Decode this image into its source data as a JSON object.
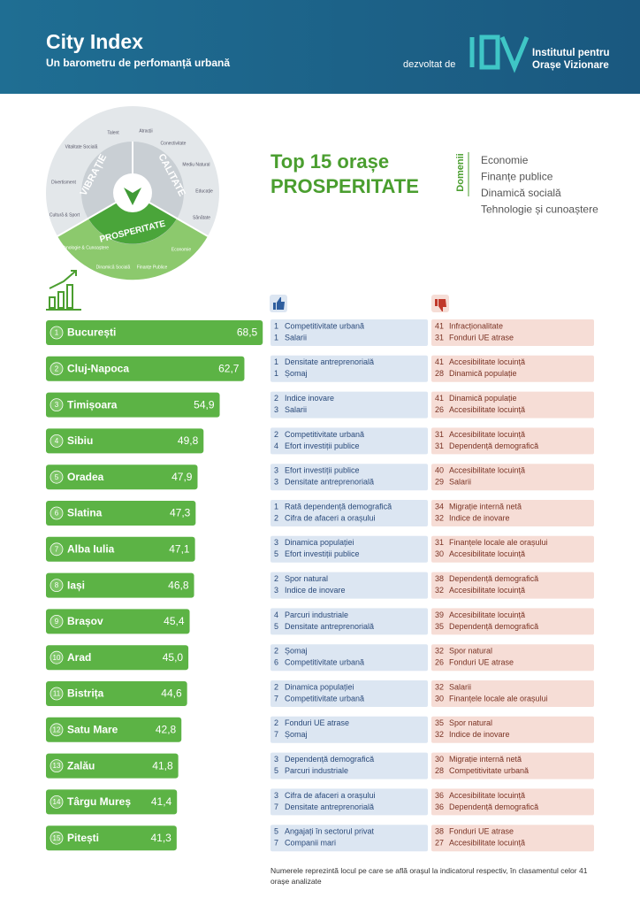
{
  "header": {
    "title": "City Index",
    "subtitle": "Un barometru de perfomanță urbană",
    "developed_by": "dezvoltat de",
    "institute": [
      "Institutul pentru",
      "Orașe Vizionare"
    ]
  },
  "wheel": {
    "dimensions": [
      "VIBRAȚIE",
      "CALITATE",
      "PROSPERITATE"
    ],
    "sectors": [
      "Talent",
      "Atracții",
      "Conectivitate",
      "Mediu Natural",
      "Educație",
      "Sănătate",
      "Economie",
      "Finanțe Publice",
      "Dinamică Socială",
      "Tehnologie & Cunoaștere",
      "Cultură & Sport",
      "Divertisment",
      "Vitalitate Socială"
    ]
  },
  "heading": {
    "line1": "Top 15 orașe",
    "line2": "PROSPERITATE",
    "domains_label": "Domenii",
    "domains": [
      "Economie",
      "Finanțe publice",
      "Dinamică socială",
      "Tehnologie și cunoaștere"
    ]
  },
  "chart_data": {
    "type": "bar",
    "orientation": "horizontal",
    "color": "#5cb345",
    "ranks": [
      1,
      2,
      3,
      4,
      5,
      6,
      7,
      8,
      9,
      10,
      11,
      12,
      13,
      14,
      15
    ],
    "categories": [
      "București",
      "Cluj-Napoca",
      "Timișoara",
      "Sibiu",
      "Oradea",
      "Slatina",
      "Alba Iulia",
      "Iași",
      "Brașov",
      "Arad",
      "Bistrița",
      "Satu Mare",
      "Zalău",
      "Târgu Mureș",
      "Pitești"
    ],
    "values": [
      68.5,
      62.7,
      54.9,
      49.8,
      47.9,
      47.3,
      47.1,
      46.8,
      45.4,
      45.0,
      44.6,
      42.8,
      41.8,
      41.4,
      41.3
    ],
    "value_labels": [
      "68,5",
      "62,7",
      "54,9",
      "49,8",
      "47,9",
      "47,3",
      "47,1",
      "46,8",
      "45,4",
      "45,0",
      "44,6",
      "42,8",
      "41,8",
      "41,4",
      "41,3"
    ]
  },
  "indicators": [
    {
      "strengths": [
        {
          "rank": 1,
          "label": "Competitivitate urbană"
        },
        {
          "rank": 1,
          "label": "Salarii"
        }
      ],
      "weaknesses": [
        {
          "rank": 41,
          "label": "Infracționalitate"
        },
        {
          "rank": 31,
          "label": "Fonduri UE atrase"
        }
      ]
    },
    {
      "strengths": [
        {
          "rank": 1,
          "label": "Densitate antreprenorială"
        },
        {
          "rank": 1,
          "label": "Șomaj"
        }
      ],
      "weaknesses": [
        {
          "rank": 41,
          "label": "Accesibilitate locuință"
        },
        {
          "rank": 28,
          "label": "Dinamică populație"
        }
      ]
    },
    {
      "strengths": [
        {
          "rank": 2,
          "label": "Indice inovare"
        },
        {
          "rank": 3,
          "label": "Salarii"
        }
      ],
      "weaknesses": [
        {
          "rank": 41,
          "label": "Dinamică populație"
        },
        {
          "rank": 26,
          "label": "Accesibilitate locuință"
        }
      ]
    },
    {
      "strengths": [
        {
          "rank": 2,
          "label": "Competitivitate urbană"
        },
        {
          "rank": 4,
          "label": "Efort investiții publice"
        }
      ],
      "weaknesses": [
        {
          "rank": 31,
          "label": "Accesibilitate locuință"
        },
        {
          "rank": 31,
          "label": "Dependență demografică"
        }
      ]
    },
    {
      "strengths": [
        {
          "rank": 3,
          "label": "Efort investiții publice"
        },
        {
          "rank": 3,
          "label": "Densitate antreprenorială"
        }
      ],
      "weaknesses": [
        {
          "rank": 40,
          "label": "Accesibilitate locuință"
        },
        {
          "rank": 29,
          "label": "Salarii"
        }
      ]
    },
    {
      "strengths": [
        {
          "rank": 1,
          "label": "Rată dependență demografică"
        },
        {
          "rank": 2,
          "label": "Cifra de afaceri a orașului"
        }
      ],
      "weaknesses": [
        {
          "rank": 34,
          "label": "Migrație internă netă"
        },
        {
          "rank": 32,
          "label": "Indice de inovare"
        }
      ]
    },
    {
      "strengths": [
        {
          "rank": 3,
          "label": "Dinamica populației"
        },
        {
          "rank": 5,
          "label": "Efort investiții publice"
        }
      ],
      "weaknesses": [
        {
          "rank": 31,
          "label": "Finanțele locale ale orașului"
        },
        {
          "rank": 30,
          "label": "Accesibilitate locuință"
        }
      ]
    },
    {
      "strengths": [
        {
          "rank": 2,
          "label": "Spor natural"
        },
        {
          "rank": 3,
          "label": "Indice de inovare"
        }
      ],
      "weaknesses": [
        {
          "rank": 38,
          "label": "Dependență demografică"
        },
        {
          "rank": 32,
          "label": "Accesibilitate locuință"
        }
      ]
    },
    {
      "strengths": [
        {
          "rank": 4,
          "label": "Parcuri industriale"
        },
        {
          "rank": 5,
          "label": "Densitate antreprenorială"
        }
      ],
      "weaknesses": [
        {
          "rank": 39,
          "label": "Accesibilitate locuință"
        },
        {
          "rank": 35,
          "label": "Dependență demografică"
        }
      ]
    },
    {
      "strengths": [
        {
          "rank": 2,
          "label": "Șomaj"
        },
        {
          "rank": 6,
          "label": "Competitivitate urbană"
        }
      ],
      "weaknesses": [
        {
          "rank": 32,
          "label": "Spor natural"
        },
        {
          "rank": 26,
          "label": "Fonduri UE atrase"
        }
      ]
    },
    {
      "strengths": [
        {
          "rank": 2,
          "label": "Dinamica populației"
        },
        {
          "rank": 7,
          "label": "Competitivitate urbană"
        }
      ],
      "weaknesses": [
        {
          "rank": 32,
          "label": "Salarii"
        },
        {
          "rank": 30,
          "label": "Finanțele locale ale orașului"
        }
      ]
    },
    {
      "strengths": [
        {
          "rank": 2,
          "label": "Fonduri UE atrase"
        },
        {
          "rank": 7,
          "label": "Șomaj"
        }
      ],
      "weaknesses": [
        {
          "rank": 35,
          "label": "Spor natural"
        },
        {
          "rank": 32,
          "label": "Indice de inovare"
        }
      ]
    },
    {
      "strengths": [
        {
          "rank": 3,
          "label": "Dependență demografică"
        },
        {
          "rank": 5,
          "label": "Parcuri industriale"
        }
      ],
      "weaknesses": [
        {
          "rank": 30,
          "label": "Migrație internă netă"
        },
        {
          "rank": 28,
          "label": "Competitivitate urbană"
        }
      ]
    },
    {
      "strengths": [
        {
          "rank": 3,
          "label": "Cifra de afaceri a orașului"
        },
        {
          "rank": 7,
          "label": "Densitate antreprenorială"
        }
      ],
      "weaknesses": [
        {
          "rank": 36,
          "label": "Accesibilitate locuință"
        },
        {
          "rank": 36,
          "label": "Dependență demografică"
        }
      ]
    },
    {
      "strengths": [
        {
          "rank": 5,
          "label": "Angajați în sectorul privat"
        },
        {
          "rank": 7,
          "label": "Companii mari"
        }
      ],
      "weaknesses": [
        {
          "rank": 38,
          "label": "Fonduri UE atrase"
        },
        {
          "rank": 27,
          "label": "Accesibilitate locuință"
        }
      ]
    }
  ],
  "footnote": "Numerele reprezintă locul pe care se află orașul la indicatorul respectiv, în clasamentul celor 41 orașe analizate"
}
